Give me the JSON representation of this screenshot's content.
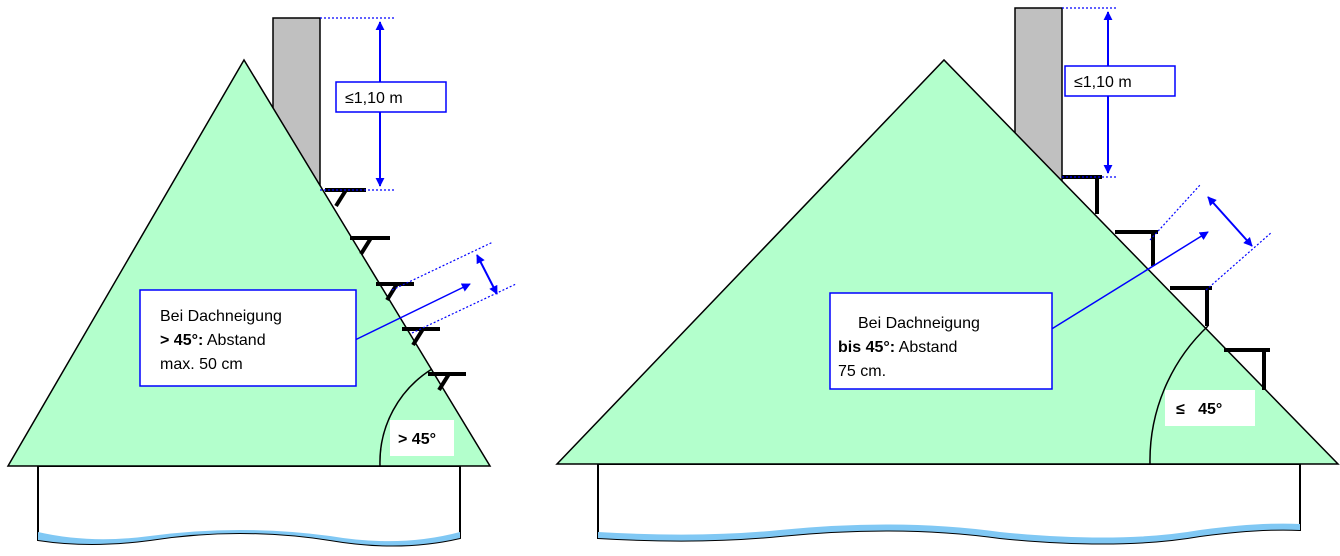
{
  "left_panel": {
    "height_label": "≤1,10 m",
    "callout_line1": "Bei Dachneigung",
    "callout_bold": "> 45°:",
    "callout_rest": " Abstand",
    "callout_line3": "max. 50 cm",
    "angle_label": "> 45°"
  },
  "right_panel": {
    "height_label": "≤1,10 m",
    "callout_line1": "Bei Dachneigung",
    "callout_bold": "bis 45°:",
    "callout_rest": " Abstand",
    "callout_line3": "75 cm.",
    "angle_label": "≤   45°"
  },
  "colors": {
    "roof_fill": "#b3ffcc",
    "chimney_fill": "#c0c0c0",
    "dimension_blue": "#0000ff",
    "water_fill": "#80c8f4"
  }
}
